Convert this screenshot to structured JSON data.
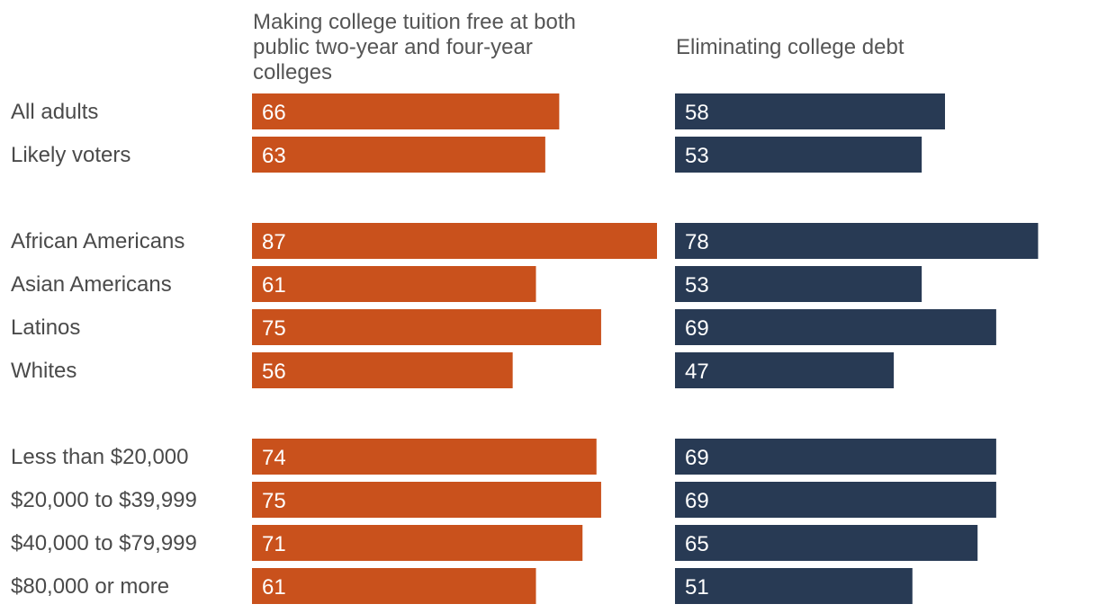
{
  "chart_data": {
    "type": "bar",
    "orientation": "horizontal",
    "series": [
      {
        "name": "Making college tuition free at both public two-year and four-year colleges",
        "header_lines": [
          "Making college tuition free at both",
          "public two-year and four-year",
          "colleges"
        ],
        "color": "#c9511c",
        "values": [
          66,
          63,
          87,
          61,
          75,
          56,
          74,
          75,
          71,
          61
        ]
      },
      {
        "name": "Eliminating college debt",
        "header_lines": [
          "Eliminating college debt"
        ],
        "color": "#283a54",
        "values": [
          58,
          53,
          78,
          53,
          69,
          47,
          69,
          69,
          65,
          51
        ]
      }
    ],
    "groups": [
      {
        "categories": [
          "All adults",
          "Likely voters"
        ]
      },
      {
        "categories": [
          "African Americans",
          "Asian Americans",
          "Latinos",
          "Whites"
        ]
      },
      {
        "categories": [
          "Less than $20,000",
          "$20,000 to $39,999",
          "$40,000 to $79,999",
          "$80,000 or more"
        ]
      }
    ],
    "categories": [
      "All adults",
      "Likely voters",
      "African Americans",
      "Asian Americans",
      "Latinos",
      "Whites",
      "Less than $20,000",
      "$20,000 to $39,999",
      "$40,000 to $79,999",
      "$80,000 or more"
    ],
    "xlim": [
      0,
      100
    ],
    "grid": false,
    "legend": "column headers"
  }
}
